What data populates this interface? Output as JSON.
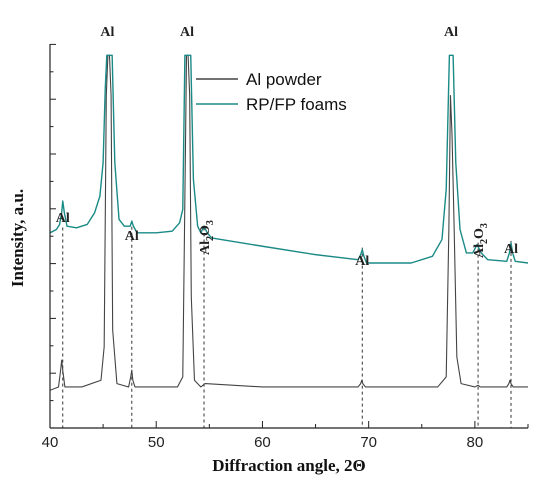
{
  "chart_data": {
    "type": "line",
    "xlabel": "Diffraction angle, 2Θ",
    "ylabel": "Intensity, a.u.",
    "xlim": [
      40,
      85
    ],
    "x_ticks": [
      40,
      50,
      60,
      70,
      80
    ],
    "grid": false,
    "legend_position": "top-center",
    "y_tick_labels": "none",
    "series": [
      {
        "name": "Al powder",
        "color": "#444444",
        "x": [
          40.0,
          40.8,
          41.0,
          41.1,
          41.2,
          41.4,
          43.0,
          44.8,
          45.1,
          45.3,
          45.45,
          45.6,
          45.75,
          45.9,
          46.3,
          47.4,
          47.6,
          47.7,
          47.8,
          48.0,
          52.0,
          52.5,
          52.7,
          52.85,
          53.0,
          53.15,
          53.3,
          53.6,
          54.2,
          54.6,
          60.0,
          69.0,
          69.25,
          69.35,
          69.45,
          69.7,
          76.5,
          77.3,
          77.55,
          77.7,
          77.85,
          78.05,
          78.3,
          78.7,
          80.0,
          80.3,
          80.5,
          83.0,
          83.2,
          83.3,
          83.4,
          83.6,
          85.0
        ],
        "y": [
          0.02,
          0.03,
          0.08,
          0.11,
          0.08,
          0.03,
          0.03,
          0.05,
          0.15,
          0.9,
          1.02,
          1.02,
          0.9,
          0.2,
          0.04,
          0.03,
          0.06,
          0.08,
          0.05,
          0.03,
          0.03,
          0.06,
          0.6,
          1.02,
          1.02,
          0.9,
          0.3,
          0.05,
          0.03,
          0.04,
          0.03,
          0.03,
          0.04,
          0.05,
          0.04,
          0.03,
          0.03,
          0.06,
          0.5,
          0.9,
          0.78,
          0.5,
          0.12,
          0.04,
          0.03,
          0.035,
          0.03,
          0.03,
          0.04,
          0.05,
          0.04,
          0.03,
          0.03
        ]
      },
      {
        "name": "RP/FP foams",
        "color": "#1a8a86",
        "x": [
          40.0,
          40.6,
          40.9,
          41.1,
          41.2,
          41.35,
          41.6,
          42.5,
          43.5,
          44.2,
          44.7,
          45.0,
          45.2,
          45.35,
          45.5,
          45.7,
          45.85,
          46.1,
          46.5,
          47.0,
          47.55,
          47.7,
          47.85,
          48.2,
          50.0,
          51.5,
          52.2,
          52.5,
          52.7,
          52.85,
          53.05,
          53.25,
          53.5,
          53.9,
          54.2,
          54.5,
          54.8,
          55.2,
          60.0,
          65.0,
          69.0,
          69.25,
          69.4,
          69.55,
          69.8,
          74.0,
          76.0,
          76.9,
          77.3,
          77.6,
          77.75,
          77.95,
          78.2,
          78.6,
          79.2,
          79.8,
          80.2,
          80.6,
          81.2,
          83.0,
          83.25,
          83.4,
          83.55,
          83.8,
          85.0
        ],
        "y": [
          0.49,
          0.5,
          0.515,
          0.55,
          0.585,
          0.55,
          0.51,
          0.505,
          0.515,
          0.55,
          0.6,
          0.7,
          0.92,
          1.02,
          1.02,
          1.02,
          1.02,
          0.7,
          0.53,
          0.51,
          0.51,
          0.525,
          0.51,
          0.49,
          0.49,
          0.495,
          0.52,
          0.56,
          1.02,
          1.02,
          1.02,
          1.02,
          0.65,
          0.51,
          0.49,
          0.51,
          0.49,
          0.475,
          0.45,
          0.425,
          0.41,
          0.425,
          0.44,
          0.42,
          0.4,
          0.4,
          0.42,
          0.47,
          0.62,
          1.02,
          1.02,
          1.02,
          0.7,
          0.5,
          0.43,
          0.43,
          0.455,
          0.43,
          0.41,
          0.405,
          0.43,
          0.46,
          0.43,
          0.405,
          0.4
        ]
      }
    ],
    "annotations": [
      {
        "id": "al-41",
        "text": "Al",
        "x": 41.2,
        "line_y": 0.5
      },
      {
        "id": "al-45",
        "text": "Al",
        "x": 45.4
      },
      {
        "id": "al-47",
        "text": "Al",
        "x": 47.7,
        "line_y": 0.52
      },
      {
        "id": "al-53",
        "text": "Al",
        "x": 52.9
      },
      {
        "id": "al2o3-54",
        "text": "Al",
        "sub": "2",
        "text2": "O",
        "sub2": "3",
        "x": 54.5,
        "line_y": 0.5,
        "vertical": true
      },
      {
        "id": "al-69",
        "text": "Al",
        "x": 69.4,
        "line_y": 0.44
      },
      {
        "id": "al-78",
        "text": "Al",
        "x": 77.75
      },
      {
        "id": "al2o3-80",
        "text": "Al",
        "sub": "2",
        "text2": "O",
        "sub2": "3",
        "x": 80.3,
        "line_y": 0.455,
        "vertical": true
      },
      {
        "id": "al-83",
        "text": "Al",
        "x": 83.4,
        "line_y": 0.46
      }
    ]
  }
}
